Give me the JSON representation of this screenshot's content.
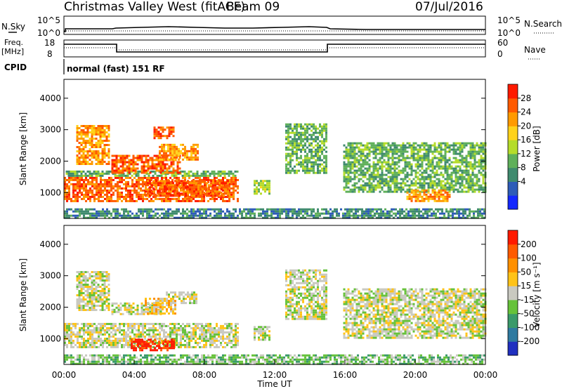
{
  "header": {
    "title": "Christmas Valley West (fitACF)",
    "beam": "Beam 09",
    "date": "07/Jul/2016"
  },
  "nsky_panel": {
    "left_label": "N.Sky",
    "right_label": "N.Search",
    "left_ticks": [
      "10^5",
      "10^0"
    ],
    "right_ticks": [
      "10^5",
      "10^0"
    ]
  },
  "freq_panel": {
    "left_label_1": "Freq.",
    "left_label_2": "[MHz]",
    "right_label": "Nave",
    "left_ticks": [
      "18",
      "8"
    ],
    "right_ticks": [
      "60",
      "0"
    ]
  },
  "cpid": {
    "label": "CPID",
    "mode": "normal (fast) 151 RF"
  },
  "colors": {
    "power_scale": [
      "#1428ff",
      "#2e5cb8",
      "#3f8a6e",
      "#5fb05a",
      "#b5dc2a",
      "#ffd21a",
      "#ff9a00",
      "#ff5a00",
      "#ff1a00"
    ],
    "velocity_scale": [
      "#2030c0",
      "#2f7aa0",
      "#3a9a6a",
      "#66c23a",
      "#c9c9c0",
      "#ffc318",
      "#ff9000",
      "#ff5a00",
      "#ff1a00"
    ]
  },
  "chart_data": [
    {
      "type": "heatmap",
      "quantity": "Power",
      "ylabel": "Slant Range [km]",
      "colorbar_label": "Power [dB]",
      "colorbar_ticks": [
        "28",
        "24",
        "20",
        "16",
        "12",
        "8",
        "4"
      ],
      "ylim": [
        180,
        4600
      ],
      "y_ticks": [
        1000,
        2000,
        3000,
        4000
      ],
      "xlim": [
        0,
        24
      ],
      "regions": [
        {
          "t0": 0.0,
          "t1": 9.9,
          "r0": 750,
          "r1": 1500,
          "level": 7
        },
        {
          "t0": 0.1,
          "t1": 9.9,
          "r0": 1500,
          "r1": 1700,
          "level": 3
        },
        {
          "t0": 0.7,
          "t1": 2.6,
          "r0": 1900,
          "r1": 3150,
          "level": 6
        },
        {
          "t0": 2.7,
          "t1": 6.6,
          "r0": 1600,
          "r1": 2200,
          "level": 7
        },
        {
          "t0": 5.4,
          "t1": 7.6,
          "r0": 2050,
          "r1": 2550,
          "level": 6
        },
        {
          "t0": 5.1,
          "t1": 6.2,
          "r0": 2750,
          "r1": 3100,
          "level": 7
        },
        {
          "t0": 4.6,
          "t1": 9.3,
          "r0": 900,
          "r1": 1400,
          "level": 7
        },
        {
          "t0": 10.8,
          "t1": 11.7,
          "r0": 950,
          "r1": 1400,
          "level": 4
        },
        {
          "t0": 12.6,
          "t1": 15.0,
          "r0": 1600,
          "r1": 3200,
          "level": 3
        },
        {
          "t0": 15.9,
          "t1": 24.0,
          "r0": 1000,
          "r1": 2600,
          "level": 3
        },
        {
          "t0": 19.5,
          "t1": 22.0,
          "r0": 700,
          "r1": 1100,
          "level": 6
        },
        {
          "t0": 0.0,
          "t1": 24.0,
          "r0": 200,
          "r1": 500,
          "level": 2
        }
      ]
    },
    {
      "type": "heatmap",
      "quantity": "Velocity",
      "ylabel": "Slant Range [km]",
      "xlabel": "Time UT",
      "colorbar_label": "Velocity [m s⁻¹]",
      "colorbar_ticks": [
        "200",
        "100",
        "50",
        "15",
        "-15",
        "-50",
        "-100",
        "-200"
      ],
      "ylim": [
        180,
        4600
      ],
      "y_ticks": [
        1000,
        2000,
        3000,
        4000
      ],
      "xlim": [
        0,
        24
      ],
      "x_ticks": [
        "00:00",
        "04:00",
        "08:00",
        "12:00",
        "16:00",
        "20:00",
        "00:00"
      ],
      "regions": [
        {
          "t0": 0.0,
          "t1": 9.9,
          "r0": 700,
          "r1": 1500,
          "level": 4
        },
        {
          "t0": 0.7,
          "t1": 2.6,
          "r0": 1900,
          "r1": 3150,
          "level": 4
        },
        {
          "t0": 2.7,
          "t1": 5.7,
          "r0": 1750,
          "r1": 2150,
          "level": 4
        },
        {
          "t0": 4.6,
          "t1": 6.4,
          "r0": 1800,
          "r1": 2300,
          "level": 5
        },
        {
          "t0": 3.8,
          "t1": 6.3,
          "r0": 600,
          "r1": 1000,
          "level": 8
        },
        {
          "t0": 5.8,
          "t1": 7.6,
          "r0": 2100,
          "r1": 2500,
          "level": 4
        },
        {
          "t0": 10.8,
          "t1": 11.7,
          "r0": 950,
          "r1": 1400,
          "level": 4
        },
        {
          "t0": 12.6,
          "t1": 15.0,
          "r0": 1600,
          "r1": 3200,
          "level": 4
        },
        {
          "t0": 15.9,
          "t1": 24.0,
          "r0": 1000,
          "r1": 2600,
          "level": 4
        },
        {
          "t0": 0.0,
          "t1": 24.0,
          "r0": 200,
          "r1": 500,
          "level": 3
        }
      ]
    }
  ]
}
